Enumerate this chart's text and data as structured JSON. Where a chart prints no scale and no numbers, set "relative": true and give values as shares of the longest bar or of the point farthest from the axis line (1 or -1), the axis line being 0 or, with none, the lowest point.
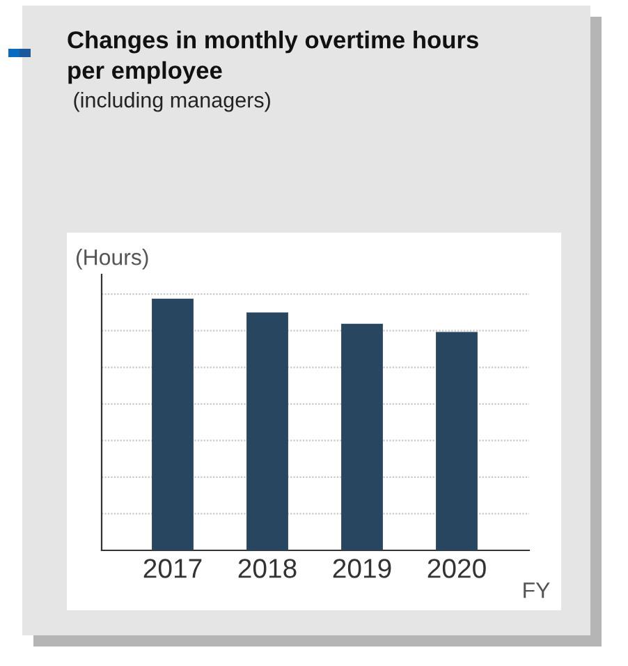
{
  "chart_data": {
    "type": "bar",
    "title": "Changes in monthly overtime hours\nper employee",
    "subtitle": " (including managers)",
    "ylabel": "(Hours)",
    "xlabel": "FY",
    "categories": [
      "2017",
      "2018",
      "2019",
      "2020"
    ],
    "values": [
      1,
      0.945,
      0.9,
      0.868
    ],
    "color": "#28465f",
    "relative": true,
    "grid": "y"
  }
}
